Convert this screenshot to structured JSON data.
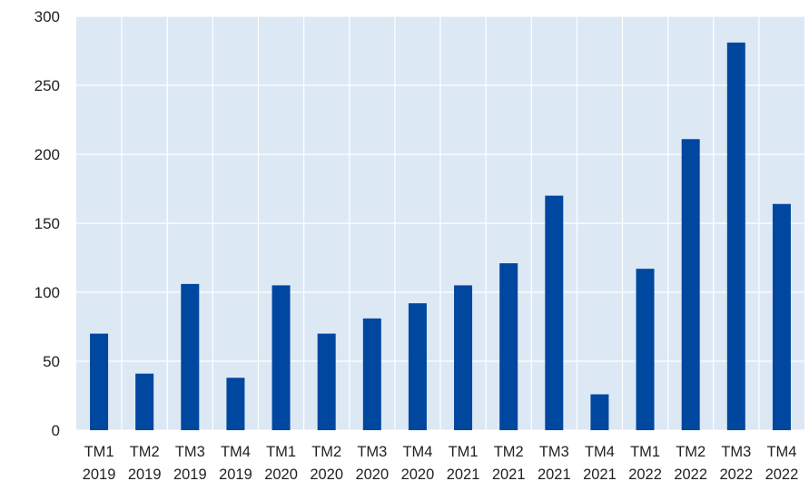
{
  "chart_data": {
    "type": "bar",
    "categories": [
      [
        "TM1",
        "2019"
      ],
      [
        "TM2",
        "2019"
      ],
      [
        "TM3",
        "2019"
      ],
      [
        "TM4",
        "2019"
      ],
      [
        "TM1",
        "2020"
      ],
      [
        "TM2",
        "2020"
      ],
      [
        "TM3",
        "2020"
      ],
      [
        "TM4",
        "2020"
      ],
      [
        "TM1",
        "2021"
      ],
      [
        "TM2",
        "2021"
      ],
      [
        "TM3",
        "2021"
      ],
      [
        "TM4",
        "2021"
      ],
      [
        "TM1",
        "2022"
      ],
      [
        "TM2",
        "2022"
      ],
      [
        "TM3",
        "2022"
      ],
      [
        "TM4",
        "2022"
      ]
    ],
    "values": [
      70,
      41,
      106,
      38,
      105,
      70,
      81,
      92,
      105,
      121,
      170,
      26,
      117,
      211,
      281,
      164
    ],
    "title": "",
    "xlabel": "",
    "ylabel": "",
    "ylim": [
      0,
      300
    ],
    "yticks": [
      0,
      50,
      100,
      150,
      200,
      250,
      300
    ],
    "grid": true,
    "colors": {
      "bar": "#0047a0",
      "plot_background": "#dde8f5",
      "grid": "#ffffff"
    }
  }
}
